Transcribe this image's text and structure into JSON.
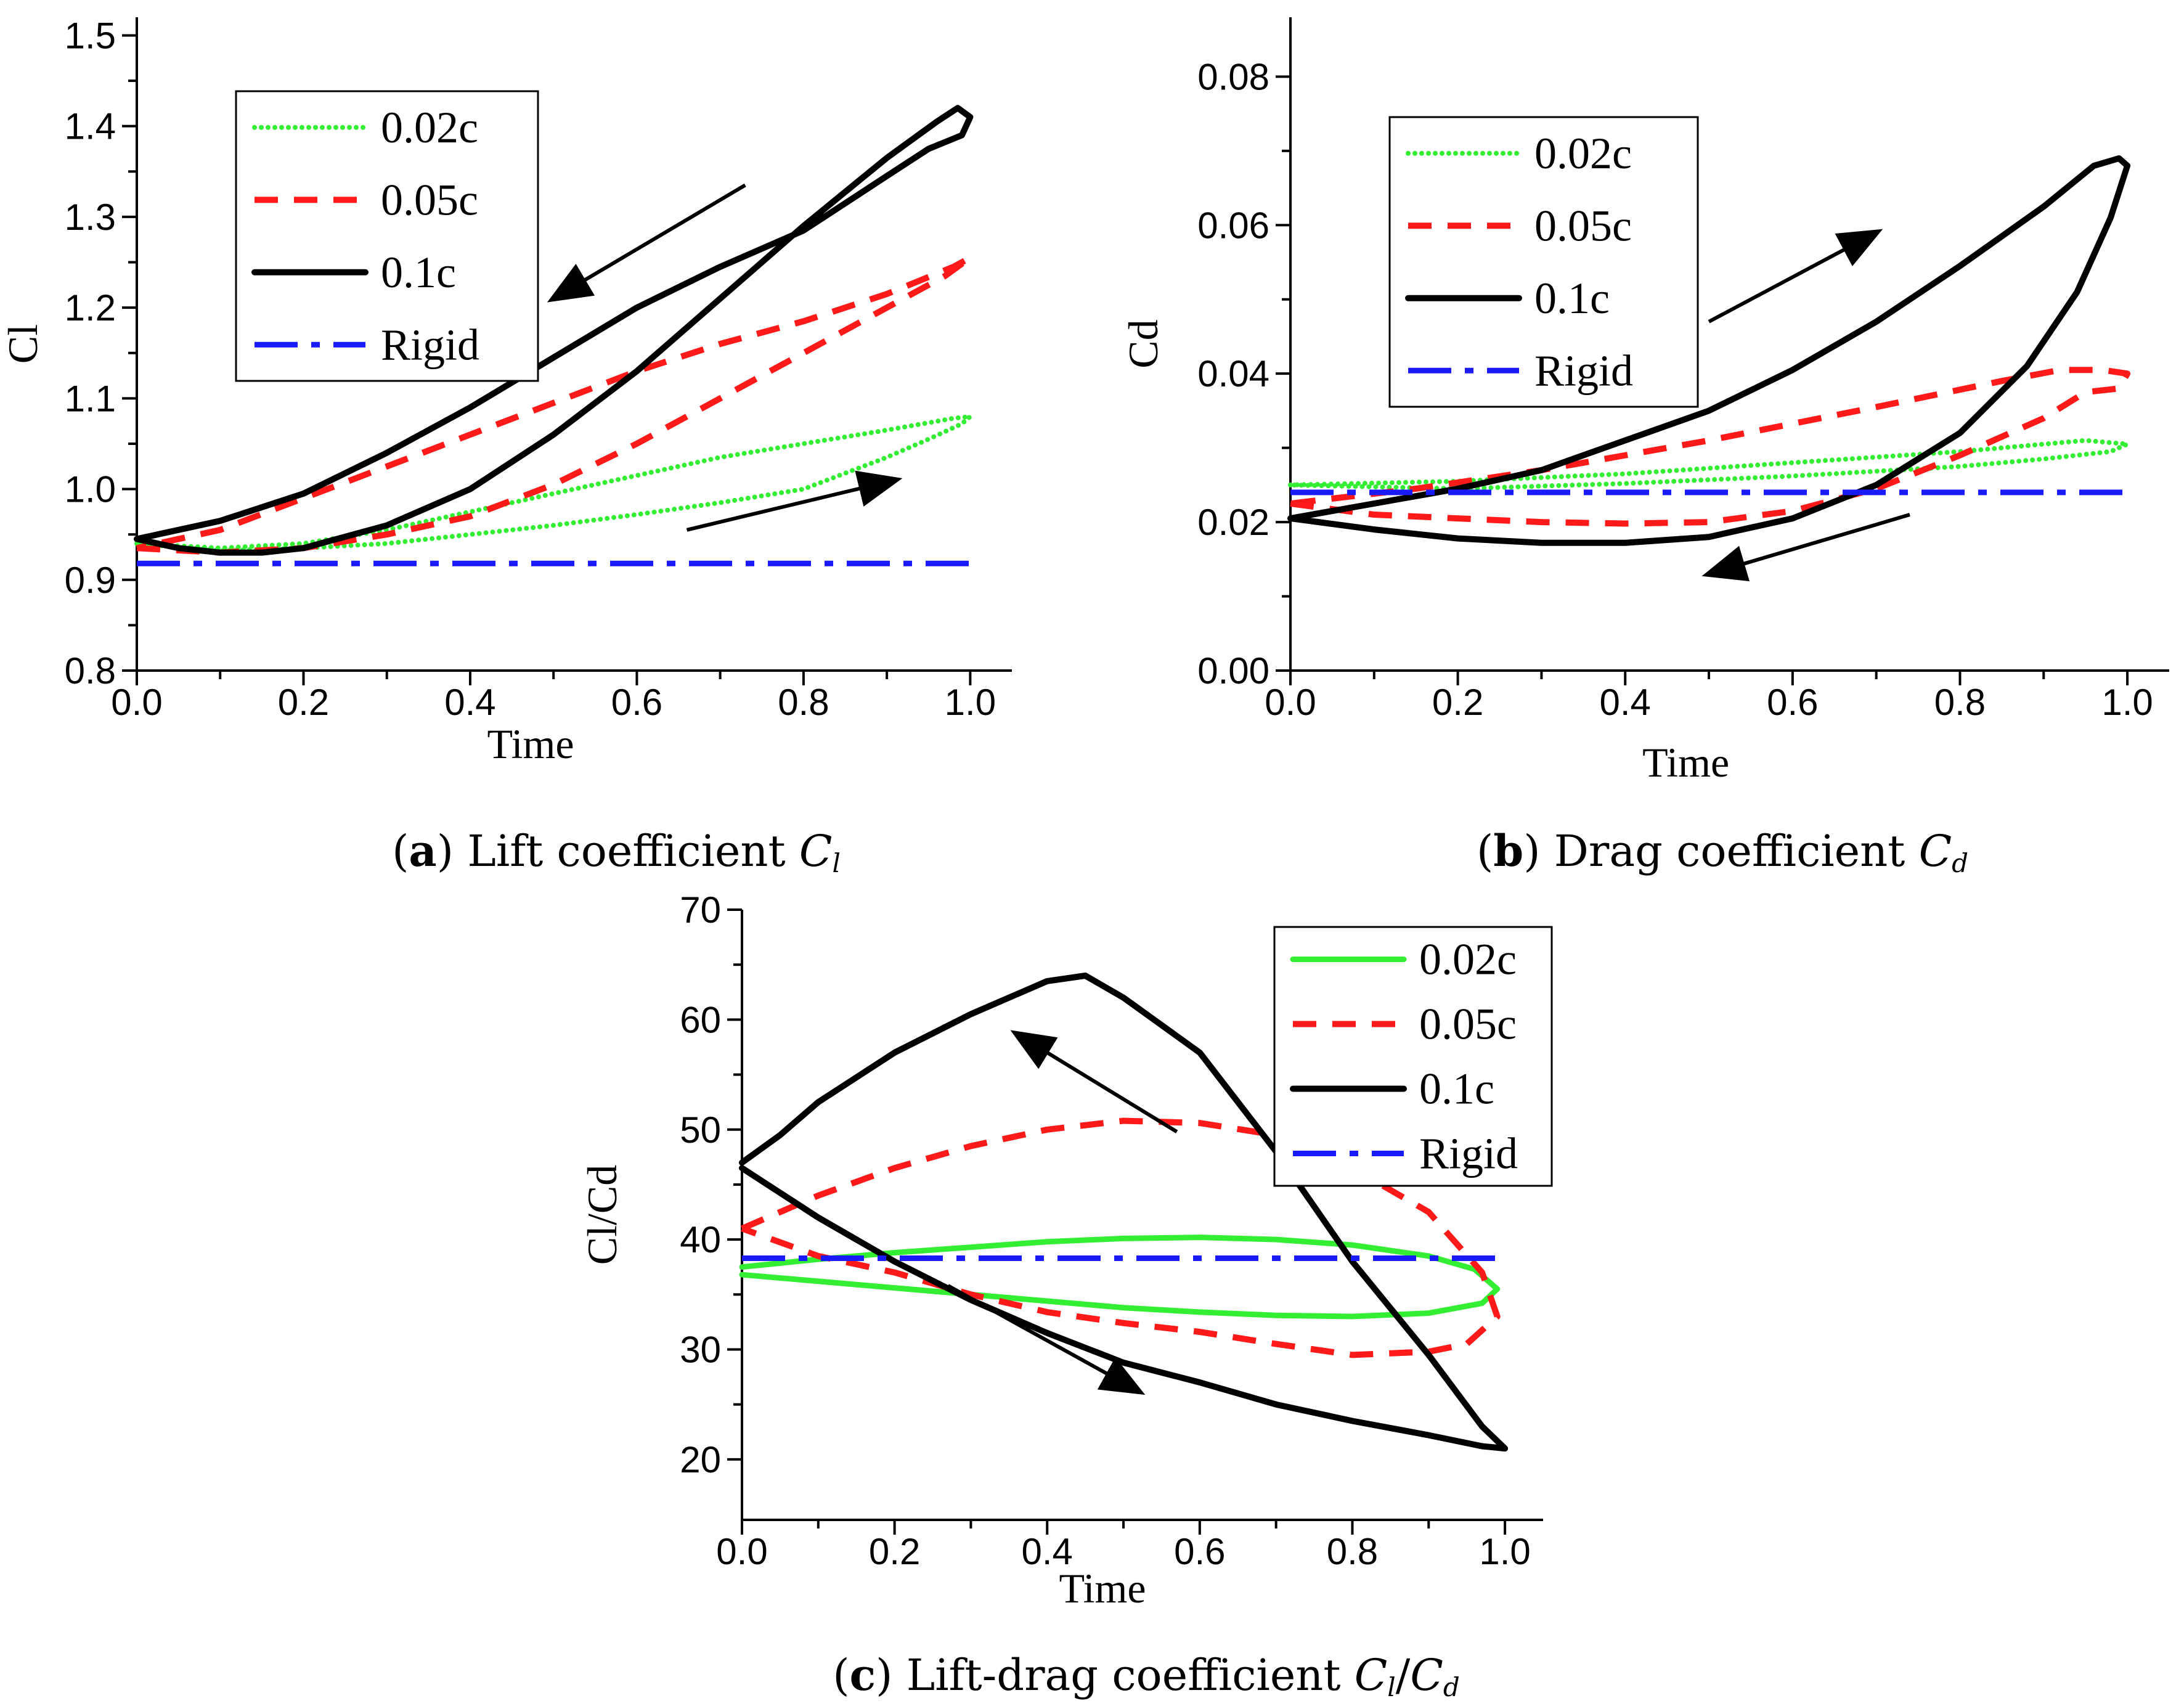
{
  "colors": {
    "s002": "#33ee33",
    "s005": "#ff1a1a",
    "s01": "#000000",
    "rigid": "#1a1aff"
  },
  "chart_data": [
    {
      "type": "line",
      "caption": {
        "open": "(",
        "letter": "a",
        "close": ")",
        "text": " Lift coefficient ",
        "sym": "C",
        "sub": "l"
      },
      "xlabel": "Time",
      "ylabel": "Cl",
      "xlim": [
        0.0,
        1.05
      ],
      "ylim": [
        0.8,
        1.52
      ],
      "xticks": [
        "0.0",
        "0.2",
        "0.4",
        "0.6",
        "0.8",
        "1.0"
      ],
      "yticks": [
        "0.8",
        "0.9",
        "1.0",
        "1.1",
        "1.2",
        "1.3",
        "1.4",
        "1.5"
      ],
      "legend": [
        "0.02c",
        "0.05c",
        "0.1c",
        "Rigid"
      ],
      "series": [
        {
          "name": "0.02c",
          "style": "dotted",
          "color_key": "s002",
          "points": [
            [
              0.0,
              0.94
            ],
            [
              0.1,
              0.935
            ],
            [
              0.2,
              0.94
            ],
            [
              0.3,
              0.955
            ],
            [
              0.4,
              0.975
            ],
            [
              0.5,
              0.995
            ],
            [
              0.6,
              1.015
            ],
            [
              0.7,
              1.035
            ],
            [
              0.8,
              1.05
            ],
            [
              0.9,
              1.065
            ],
            [
              0.98,
              1.078
            ],
            [
              1.0,
              1.08
            ],
            [
              0.99,
              1.072
            ],
            [
              0.95,
              1.055
            ],
            [
              0.9,
              1.035
            ],
            [
              0.8,
              1.0
            ],
            [
              0.7,
              0.985
            ],
            [
              0.6,
              0.972
            ],
            [
              0.5,
              0.96
            ],
            [
              0.4,
              0.95
            ],
            [
              0.3,
              0.94
            ],
            [
              0.2,
              0.935
            ],
            [
              0.1,
              0.932
            ],
            [
              0.0,
              0.94
            ]
          ]
        },
        {
          "name": "0.05c",
          "style": "dashed",
          "color_key": "s005",
          "points": [
            [
              0.0,
              0.935
            ],
            [
              0.1,
              0.93
            ],
            [
              0.2,
              0.935
            ],
            [
              0.3,
              0.95
            ],
            [
              0.4,
              0.97
            ],
            [
              0.5,
              1.005
            ],
            [
              0.6,
              1.05
            ],
            [
              0.7,
              1.1
            ],
            [
              0.8,
              1.15
            ],
            [
              0.9,
              1.2
            ],
            [
              0.97,
              1.235
            ],
            [
              1.0,
              1.255
            ],
            [
              0.98,
              1.245
            ],
            [
              0.9,
              1.215
            ],
            [
              0.8,
              1.185
            ],
            [
              0.7,
              1.16
            ],
            [
              0.6,
              1.13
            ],
            [
              0.5,
              1.095
            ],
            [
              0.4,
              1.06
            ],
            [
              0.3,
              1.025
            ],
            [
              0.2,
              0.99
            ],
            [
              0.1,
              0.955
            ],
            [
              0.0,
              0.935
            ]
          ]
        },
        {
          "name": "0.1c",
          "style": "solid",
          "color_key": "s01",
          "points": [
            [
              0.0,
              0.945
            ],
            [
              0.05,
              0.935
            ],
            [
              0.1,
              0.93
            ],
            [
              0.15,
              0.93
            ],
            [
              0.2,
              0.935
            ],
            [
              0.3,
              0.96
            ],
            [
              0.4,
              1.0
            ],
            [
              0.5,
              1.06
            ],
            [
              0.6,
              1.13
            ],
            [
              0.7,
              1.21
            ],
            [
              0.8,
              1.29
            ],
            [
              0.9,
              1.365
            ],
            [
              0.96,
              1.405
            ],
            [
              0.985,
              1.42
            ],
            [
              1.0,
              1.41
            ],
            [
              0.99,
              1.39
            ],
            [
              0.95,
              1.375
            ],
            [
              0.9,
              1.345
            ],
            [
              0.8,
              1.285
            ],
            [
              0.7,
              1.245
            ],
            [
              0.6,
              1.2
            ],
            [
              0.5,
              1.145
            ],
            [
              0.4,
              1.09
            ],
            [
              0.3,
              1.04
            ],
            [
              0.2,
              0.995
            ],
            [
              0.1,
              0.965
            ],
            [
              0.0,
              0.945
            ]
          ]
        },
        {
          "name": "Rigid",
          "style": "dashdot",
          "color_key": "rigid",
          "points": [
            [
              0.0,
              0.918
            ],
            [
              1.0,
              0.918
            ]
          ]
        }
      ],
      "arrows": [
        {
          "from": [
            0.73,
            1.335
          ],
          "to": [
            0.5,
            1.21
          ]
        },
        {
          "from": [
            0.66,
            0.955
          ],
          "to": [
            0.91,
            1.01
          ]
        }
      ]
    },
    {
      "type": "line",
      "caption": {
        "open": "(",
        "letter": "b",
        "close": ")",
        "text": " Drag coefficient ",
        "sym": "C",
        "sub": "d"
      },
      "xlabel": "Time",
      "ylabel": "Cd",
      "xlim": [
        0.0,
        1.05
      ],
      "ylim": [
        0.0,
        0.088
      ],
      "xticks": [
        "0.0",
        "0.2",
        "0.4",
        "0.6",
        "0.8",
        "1.0"
      ],
      "yticks": [
        "0.00",
        "0.02",
        "0.04",
        "0.06",
        "0.08"
      ],
      "legend": [
        "0.02c",
        "0.05c",
        "0.1c",
        "Rigid"
      ],
      "series": [
        {
          "name": "0.02c",
          "style": "dotted",
          "color_key": "s002",
          "points": [
            [
              0.0,
              0.025
            ],
            [
              0.2,
              0.0255
            ],
            [
              0.4,
              0.0265
            ],
            [
              0.6,
              0.028
            ],
            [
              0.8,
              0.0295
            ],
            [
              0.95,
              0.031
            ],
            [
              1.0,
              0.0305
            ],
            [
              0.98,
              0.0295
            ],
            [
              0.9,
              0.0285
            ],
            [
              0.8,
              0.0275
            ],
            [
              0.6,
              0.0262
            ],
            [
              0.4,
              0.0252
            ],
            [
              0.2,
              0.0245
            ],
            [
              0.0,
              0.025
            ]
          ]
        },
        {
          "name": "0.05c",
          "style": "dashed",
          "color_key": "s005",
          "points": [
            [
              0.0,
              0.0225
            ],
            [
              0.1,
              0.021
            ],
            [
              0.2,
              0.0205
            ],
            [
              0.3,
              0.02
            ],
            [
              0.4,
              0.0198
            ],
            [
              0.5,
              0.02
            ],
            [
              0.6,
              0.0215
            ],
            [
              0.7,
              0.0245
            ],
            [
              0.8,
              0.029
            ],
            [
              0.9,
              0.034
            ],
            [
              0.95,
              0.0375
            ],
            [
              0.99,
              0.038
            ],
            [
              1.0,
              0.04
            ],
            [
              0.97,
              0.0405
            ],
            [
              0.92,
              0.0405
            ],
            [
              0.85,
              0.039
            ],
            [
              0.7,
              0.0355
            ],
            [
              0.5,
              0.031
            ],
            [
              0.3,
              0.027
            ],
            [
              0.15,
              0.0245
            ],
            [
              0.0,
              0.0225
            ]
          ]
        },
        {
          "name": "0.1c",
          "style": "solid",
          "color_key": "s01",
          "points": [
            [
              0.0,
              0.0205
            ],
            [
              0.1,
              0.019
            ],
            [
              0.2,
              0.0178
            ],
            [
              0.3,
              0.0172
            ],
            [
              0.4,
              0.0172
            ],
            [
              0.5,
              0.018
            ],
            [
              0.6,
              0.0205
            ],
            [
              0.7,
              0.025
            ],
            [
              0.8,
              0.032
            ],
            [
              0.88,
              0.041
            ],
            [
              0.94,
              0.051
            ],
            [
              0.98,
              0.061
            ],
            [
              1.0,
              0.068
            ],
            [
              0.99,
              0.069
            ],
            [
              0.96,
              0.068
            ],
            [
              0.9,
              0.0625
            ],
            [
              0.8,
              0.0545
            ],
            [
              0.7,
              0.047
            ],
            [
              0.6,
              0.0405
            ],
            [
              0.5,
              0.035
            ],
            [
              0.4,
              0.031
            ],
            [
              0.3,
              0.027
            ],
            [
              0.2,
              0.0245
            ],
            [
              0.1,
              0.0225
            ],
            [
              0.0,
              0.0205
            ]
          ]
        },
        {
          "name": "Rigid",
          "style": "dashdot",
          "color_key": "rigid",
          "points": [
            [
              0.0,
              0.024
            ],
            [
              1.0,
              0.024
            ]
          ]
        }
      ],
      "arrows": [
        {
          "from": [
            0.5,
            0.047
          ],
          "to": [
            0.7,
            0.059
          ]
        },
        {
          "from": [
            0.74,
            0.021
          ],
          "to": [
            0.5,
            0.013
          ]
        }
      ]
    },
    {
      "type": "line",
      "caption": {
        "open": "(",
        "letter": "c",
        "close": ")",
        "text": " Lift-drag coefficient ",
        "sym": "C",
        "sub": "l",
        "sep": "/",
        "sym2": "C",
        "sub2": "d"
      },
      "xlabel": "Time",
      "ylabel": "Cl/Cd",
      "xlim": [
        0.0,
        1.05
      ],
      "ylim": [
        14.5,
        70
      ],
      "xticks": [
        "0.0",
        "0.2",
        "0.4",
        "0.6",
        "0.8",
        "1.0"
      ],
      "yticks": [
        "20",
        "30",
        "40",
        "50",
        "60",
        "70"
      ],
      "legend": [
        "0.02c",
        "0.05c",
        "0.1c",
        "Rigid"
      ],
      "series": [
        {
          "name": "0.02c",
          "style": "solid-thin",
          "color_key": "s002",
          "points": [
            [
              0.0,
              37.5
            ],
            [
              0.1,
              38.2
            ],
            [
              0.2,
              38.8
            ],
            [
              0.3,
              39.3
            ],
            [
              0.4,
              39.8
            ],
            [
              0.5,
              40.1
            ],
            [
              0.6,
              40.2
            ],
            [
              0.7,
              40.0
            ],
            [
              0.8,
              39.5
            ],
            [
              0.9,
              38.5
            ],
            [
              0.96,
              37.3
            ],
            [
              0.99,
              35.5
            ],
            [
              0.97,
              34.2
            ],
            [
              0.9,
              33.3
            ],
            [
              0.8,
              33.0
            ],
            [
              0.7,
              33.1
            ],
            [
              0.6,
              33.4
            ],
            [
              0.5,
              33.8
            ],
            [
              0.4,
              34.4
            ],
            [
              0.3,
              35.0
            ],
            [
              0.2,
              35.6
            ],
            [
              0.1,
              36.2
            ],
            [
              0.0,
              36.8
            ]
          ]
        },
        {
          "name": "0.05c",
          "style": "dashed",
          "color_key": "s005",
          "points": [
            [
              0.0,
              41.0
            ],
            [
              0.1,
              44.0
            ],
            [
              0.2,
              46.5
            ],
            [
              0.3,
              48.5
            ],
            [
              0.4,
              50.0
            ],
            [
              0.5,
              50.8
            ],
            [
              0.6,
              50.6
            ],
            [
              0.7,
              49.5
            ],
            [
              0.8,
              46.5
            ],
            [
              0.9,
              42.5
            ],
            [
              0.97,
              37.0
            ],
            [
              0.99,
              33.0
            ],
            [
              0.95,
              30.5
            ],
            [
              0.9,
              29.8
            ],
            [
              0.8,
              29.5
            ],
            [
              0.7,
              30.5
            ],
            [
              0.6,
              31.6
            ],
            [
              0.5,
              32.4
            ],
            [
              0.4,
              33.4
            ],
            [
              0.3,
              35.0
            ],
            [
              0.2,
              37.0
            ],
            [
              0.1,
              38.5
            ],
            [
              0.0,
              41.0
            ]
          ]
        },
        {
          "name": "0.1c",
          "style": "solid",
          "color_key": "s01",
          "points": [
            [
              0.0,
              47.0
            ],
            [
              0.05,
              49.5
            ],
            [
              0.1,
              52.5
            ],
            [
              0.2,
              57.0
            ],
            [
              0.3,
              60.5
            ],
            [
              0.4,
              63.5
            ],
            [
              0.45,
              64.0
            ],
            [
              0.5,
              62.0
            ],
            [
              0.6,
              57.0
            ],
            [
              0.7,
              48.0
            ],
            [
              0.8,
              38.0
            ],
            [
              0.9,
              29.5
            ],
            [
              0.97,
              23.0
            ],
            [
              1.0,
              21.0
            ],
            [
              0.97,
              21.2
            ],
            [
              0.9,
              22.2
            ],
            [
              0.8,
              23.5
            ],
            [
              0.7,
              25.0
            ],
            [
              0.6,
              27.0
            ],
            [
              0.5,
              28.8
            ],
            [
              0.4,
              31.5
            ],
            [
              0.3,
              34.5
            ],
            [
              0.2,
              38.0
            ],
            [
              0.1,
              42.0
            ],
            [
              0.0,
              46.5
            ]
          ]
        },
        {
          "name": "Rigid",
          "style": "dashdot",
          "color_key": "rigid",
          "points": [
            [
              0.0,
              38.3
            ],
            [
              1.0,
              38.3
            ]
          ]
        }
      ],
      "arrows": [
        {
          "from": [
            0.57,
            49.8
          ],
          "to": [
            0.36,
            58.7
          ]
        },
        {
          "from": [
            0.27,
            35.8
          ],
          "to": [
            0.52,
            26.2
          ]
        }
      ]
    }
  ]
}
